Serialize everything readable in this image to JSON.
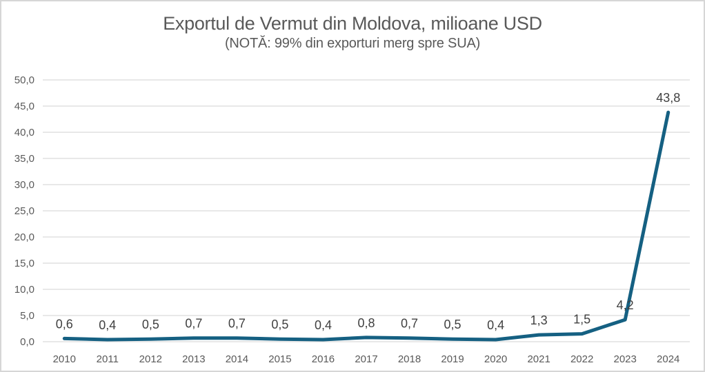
{
  "chart_data": {
    "type": "line",
    "title": "Exportul de Vermut din Moldova, milioane USD",
    "subtitle": "(NOTĂ: 99% din exporturi merg spre SUA)",
    "categories": [
      "2010",
      "2011",
      "2012",
      "2013",
      "2014",
      "2015",
      "2016",
      "2017",
      "2018",
      "2019",
      "2020",
      "2021",
      "2022",
      "2023",
      "2024"
    ],
    "series": [
      {
        "name": "Exportul de Vermut",
        "values": [
          0.6,
          0.4,
          0.5,
          0.7,
          0.7,
          0.5,
          0.4,
          0.8,
          0.7,
          0.5,
          0.4,
          1.3,
          1.5,
          4.2,
          43.8
        ],
        "value_labels": [
          "0,6",
          "0,4",
          "0,5",
          "0,7",
          "0,7",
          "0,5",
          "0,4",
          "0,8",
          "0,7",
          "0,5",
          "0,4",
          "1,3",
          "1,5",
          "4,2",
          "43,8"
        ]
      }
    ],
    "xlabel": "",
    "ylabel": "",
    "ylim": [
      0,
      50
    ],
    "ytick_step": 5,
    "ytick_labels": [
      "0,0",
      "5,0",
      "10,0",
      "15,0",
      "20,0",
      "25,0",
      "30,0",
      "35,0",
      "40,0",
      "45,0",
      "50,0"
    ],
    "grid": true,
    "legend_position": "none",
    "colors": {
      "line": "#156082",
      "gridline": "#d9d9d9",
      "axis_text": "#595959",
      "data_label": "#404040",
      "title_text": "#595959"
    }
  }
}
